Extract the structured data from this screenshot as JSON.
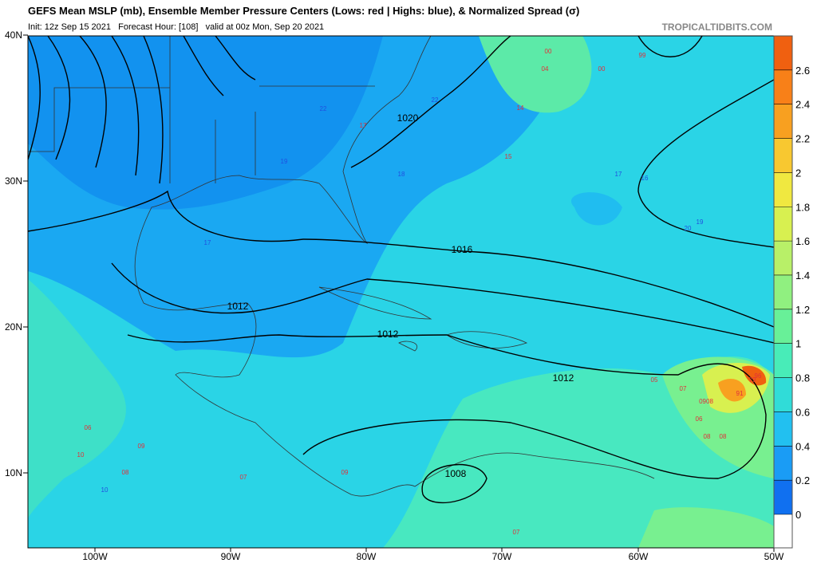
{
  "header": {
    "title": "GEFS Mean MSLP (mb), Ensemble Member Pressure Centers (Lows: red | Highs: blue), & Normalized Spread (σ)",
    "subtitle": "Init: 12z Sep 15 2021   Forecast Hour: [108]   valid at 00z Mon, Sep 20 2021",
    "credit": "TROPICALTIDBITS.COM"
  },
  "map": {
    "lat_labels": [
      "40N",
      "30N",
      "20N",
      "10N"
    ],
    "lon_labels": [
      "100W",
      "90W",
      "80W",
      "70W",
      "60W",
      "50W"
    ],
    "isobar_labels": [
      "1020",
      "1016",
      "1012",
      "1012",
      "1012",
      "1008"
    ],
    "pressure_centers": [
      {
        "text": "17",
        "kind": "low"
      },
      {
        "text": "15",
        "kind": "low"
      },
      {
        "text": "14",
        "kind": "low"
      },
      {
        "text": "04",
        "kind": "low"
      },
      {
        "text": "00",
        "kind": "low"
      },
      {
        "text": "00",
        "kind": "low"
      },
      {
        "text": "99",
        "kind": "low"
      },
      {
        "text": "06",
        "kind": "low"
      },
      {
        "text": "09",
        "kind": "low"
      },
      {
        "text": "10",
        "kind": "low"
      },
      {
        "text": "08",
        "kind": "low"
      },
      {
        "text": "07",
        "kind": "low"
      },
      {
        "text": "09",
        "kind": "low"
      },
      {
        "text": "05",
        "kind": "low"
      },
      {
        "text": "07",
        "kind": "low"
      },
      {
        "text": "06",
        "kind": "low"
      },
      {
        "text": "08",
        "kind": "low"
      },
      {
        "text": "91",
        "kind": "low"
      },
      {
        "text": "96",
        "kind": "low"
      },
      {
        "text": "79",
        "kind": "low"
      },
      {
        "text": "0908",
        "kind": "low"
      },
      {
        "text": "08",
        "kind": "low"
      },
      {
        "text": "07",
        "kind": "low"
      },
      {
        "text": "19",
        "kind": "high"
      },
      {
        "text": "22",
        "kind": "high"
      },
      {
        "text": "22",
        "kind": "high"
      },
      {
        "text": "18",
        "kind": "high"
      },
      {
        "text": "17",
        "kind": "high"
      },
      {
        "text": "17",
        "kind": "high"
      },
      {
        "text": "16",
        "kind": "high"
      },
      {
        "text": "20",
        "kind": "high"
      },
      {
        "text": "19",
        "kind": "high"
      },
      {
        "text": "10",
        "kind": "high"
      }
    ]
  },
  "colorbar": {
    "ticks": [
      "0",
      "0.2",
      "0.4",
      "0.6",
      "0.8",
      "1",
      "1.2",
      "1.4",
      "1.6",
      "1.8",
      "2",
      "2.2",
      "2.4",
      "2.6"
    ],
    "colors": [
      "#1070f0",
      "#1a9cf5",
      "#22c0f0",
      "#30dcd8",
      "#48ecb8",
      "#68f098",
      "#90f080",
      "#b8f068",
      "#d8f050",
      "#f0e840",
      "#f8c830",
      "#f8a020",
      "#f88018",
      "#f06010"
    ]
  }
}
